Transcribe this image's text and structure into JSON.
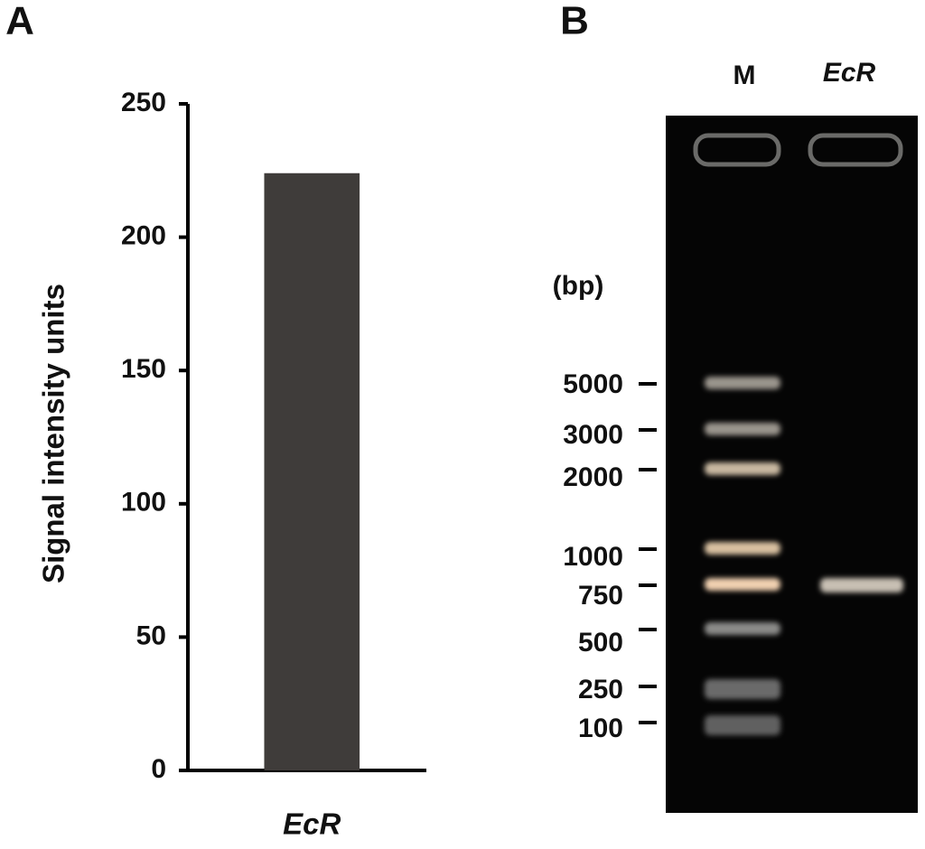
{
  "panel_labels": [
    "A",
    "B"
  ],
  "chart_data": {
    "type": "bar",
    "ylabel": "Signal intensity units",
    "categories": [
      "EcR"
    ],
    "values": [
      224
    ],
    "color": "#3f3c3a",
    "ylim": [
      0,
      250
    ],
    "yticks": [
      0,
      50,
      100,
      150,
      200,
      250
    ],
    "grid": false
  },
  "gel": {
    "lanes": [
      "M",
      "EcR"
    ],
    "unit_label": "(bp)",
    "markers": [
      "5000",
      "3000",
      "2000",
      "1000",
      "750",
      "500",
      "250",
      "100"
    ]
  }
}
